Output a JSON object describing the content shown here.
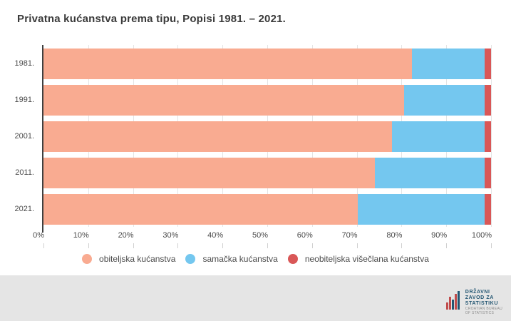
{
  "page": {
    "background": "#e5e5e5",
    "card_background": "#ffffff"
  },
  "title": "Privatna kućanstva prema tipu, Popisi 1981. – 2021.",
  "chart_data": {
    "type": "bar",
    "stacked": true,
    "orientation": "horizontal",
    "unit": "%",
    "title": "Privatna kućanstva prema tipu, Popisi 1981. – 2021.",
    "categories": [
      "1981.",
      "1991.",
      "2001.",
      "2011.",
      "2021."
    ],
    "series": [
      {
        "name": "obiteljska kućanstva",
        "color": "#f9ab91",
        "values": [
          82.3,
          80.5,
          77.8,
          74.0,
          70.3
        ]
      },
      {
        "name": "samačka kućanstva",
        "color": "#74c7ef",
        "values": [
          16.2,
          18.0,
          20.7,
          24.5,
          28.2
        ]
      },
      {
        "name": "neobiteljska višečlana kućanstva",
        "color": "#d95757",
        "values": [
          1.5,
          1.5,
          1.5,
          1.5,
          1.5
        ]
      }
    ],
    "x_axis": {
      "min": 0,
      "max": 100,
      "ticks": [
        "0%",
        "10%",
        "20%",
        "30%",
        "40%",
        "50%",
        "60%",
        "70%",
        "80%",
        "90%",
        "100%"
      ],
      "grid": true
    },
    "legend_position": "bottom"
  },
  "footer": {
    "logo": {
      "line1": "DRŽAVNI",
      "line2": "ZAVOD ZA",
      "line3": "STATISTIKU",
      "line4": "CROATIAN BUREAU",
      "line5": "OF STATISTICS",
      "mark_colors": [
        "#c14c4c",
        "#235672"
      ]
    }
  }
}
